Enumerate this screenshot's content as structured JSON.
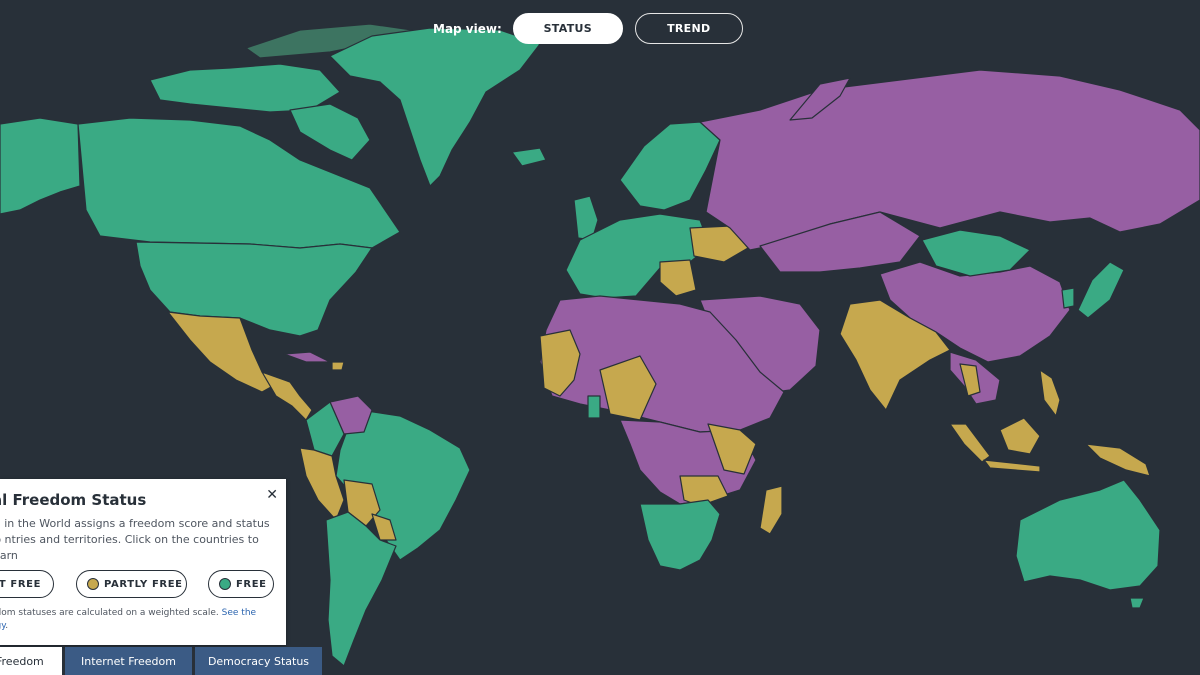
{
  "map_view": {
    "label": "Map view:",
    "options": [
      "STATUS",
      "TREND"
    ],
    "selected": "STATUS"
  },
  "panel": {
    "title": "al Freedom Status",
    "close_icon": "close-icon",
    "description": "m in the World assigns a freedom score and status to ntries and territories. Click on the countries to learn",
    "legend": [
      {
        "label": "OT FREE",
        "color": "#975fa3"
      },
      {
        "label": "PARTLY FREE",
        "color": "#c6a84e"
      },
      {
        "label": "FREE",
        "color": "#3aaa84"
      }
    ],
    "note_text": "edom statuses are calculated on a weighted scale. ",
    "note_link": "See the",
    "note_link_2": "ogy",
    "note_end": "."
  },
  "tabs": [
    {
      "label": "Freedom",
      "active": true
    },
    {
      "label": "Internet Freedom",
      "active": false
    },
    {
      "label": "Democracy Status",
      "active": false
    }
  ],
  "colors": {
    "background": "#283039",
    "free": "#3aaa84",
    "partly_free": "#c6a84e",
    "not_free": "#975fa3"
  }
}
